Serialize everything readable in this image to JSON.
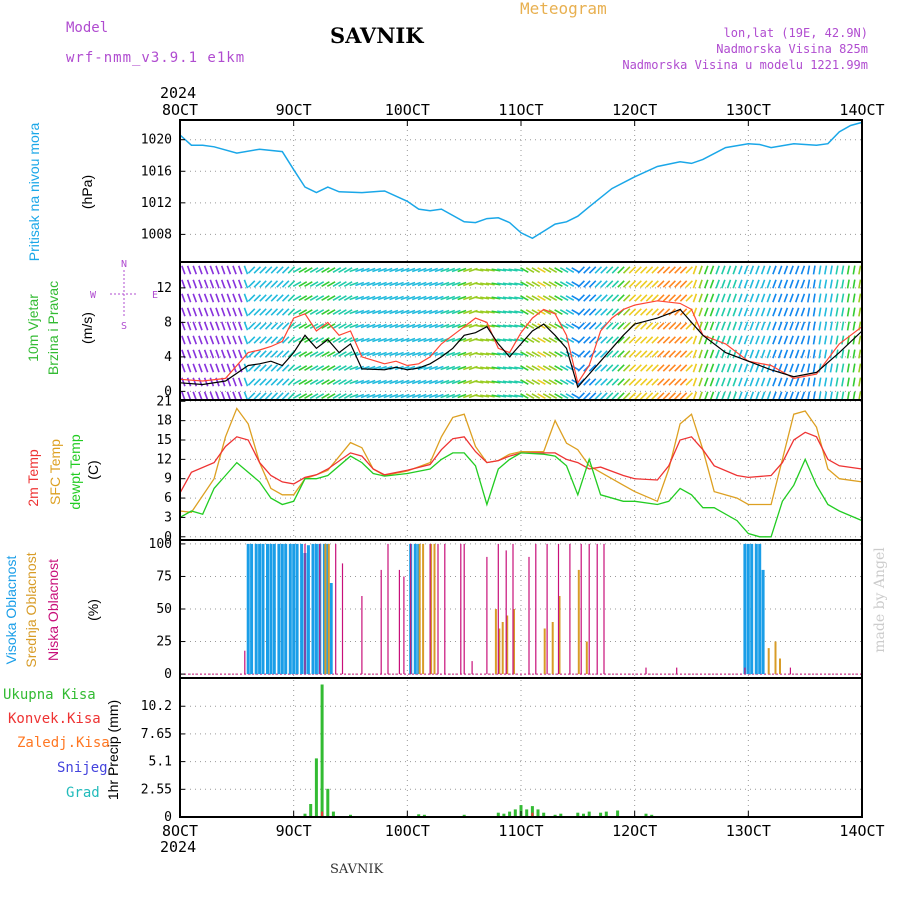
{
  "header": {
    "model_label": "Model",
    "model_name": "wrf-nmm_v3.9.1 e1km",
    "station_title": "SAVNIK",
    "product": "Meteogram",
    "lonlat": "lon,lat (19E, 42.9N)",
    "altitude": "Nadmorska Visina 825m",
    "model_altitude": "Nadmorska Visina u modelu 1221.99m",
    "year_top": "2024",
    "year_bottom": "2024",
    "footer_station": "SAVNIK",
    "credit": "made by Angel"
  },
  "colors": {
    "pressure": "#1aa7e8",
    "temp2m": "#ee3333",
    "sfc_temp": "#dda022",
    "dewpoint": "#22cc22",
    "wind_speed": "#000000",
    "gust": "#ff4433",
    "high_cloud": "#1a9ee8",
    "mid_cloud": "#d89c28",
    "low_cloud": "#c8107a",
    "total_precip": "#33bb33",
    "conv_precip": "#ee3333",
    "frz_precip": "#ff7722",
    "snow": "#4444dd",
    "graupel": "#22bbbb",
    "label_purple": "#b04cd0",
    "label_meteogram": "#e8b050"
  },
  "axis": {
    "x_ticks": [
      "8OCT",
      "9OCT",
      "10OCT",
      "11OCT",
      "12OCT",
      "13OCT",
      "14OCT"
    ],
    "x_range_days": [
      8,
      14
    ]
  },
  "panels": {
    "pressure": {
      "ylabel_left": "Pritisak na nivou mora",
      "unit": "(hPa)"
    },
    "wind": {
      "ylabel_1": "10m Vjetar",
      "ylabel_2": "Brzina i Pravac",
      "unit": "(m/s)",
      "compass_n": "N",
      "compass_w": "W",
      "compass_e": "E",
      "compass_s": "S"
    },
    "temperature": {
      "ylabel_1": "2m Temp",
      "ylabel_2": "SFC Temp",
      "ylabel_3": "dewpt Temp",
      "unit": "(C)"
    },
    "cloud": {
      "ylabel_1": "Visoka Oblacnost",
      "ylabel_2": "Srednja Oblacnost",
      "ylabel_3": "Niska Oblacnost",
      "unit": "(%)"
    },
    "precip": {
      "legend": [
        "Ukupna Kisa",
        "Konvek.Kisa",
        "Zaledj.Kisa",
        "Snijeg",
        "Grad"
      ],
      "ylabel": "1hr Precip (mm)"
    }
  },
  "chart_data": [
    {
      "type": "line",
      "title": "Pritisak na nivou mora",
      "ylabel": "(hPa)",
      "yticks": [
        "1008",
        "1012",
        "1016",
        "1020"
      ],
      "ylim": [
        1004.5,
        1022.5
      ],
      "x": [
        8.0,
        8.1,
        8.2,
        8.3,
        8.5,
        8.7,
        8.9,
        9.0,
        9.1,
        9.2,
        9.3,
        9.4,
        9.6,
        9.8,
        10.0,
        10.1,
        10.2,
        10.3,
        10.5,
        10.6,
        10.7,
        10.8,
        10.9,
        11.0,
        11.1,
        11.2,
        11.3,
        11.4,
        11.5,
        11.6,
        11.8,
        12.0,
        12.2,
        12.4,
        12.5,
        12.6,
        12.8,
        13.0,
        13.1,
        13.2,
        13.4,
        13.6,
        13.7,
        13.8,
        13.9,
        14.0
      ],
      "y": [
        1020.6,
        1019.3,
        1019.3,
        1019.1,
        1018.3,
        1018.8,
        1018.5,
        1016.2,
        1014.0,
        1013.3,
        1014.0,
        1013.4,
        1013.3,
        1013.5,
        1012.2,
        1011.2,
        1011.0,
        1011.2,
        1009.6,
        1009.5,
        1010.0,
        1010.1,
        1009.5,
        1008.2,
        1007.5,
        1008.4,
        1009.3,
        1009.6,
        1010.3,
        1011.5,
        1013.8,
        1015.3,
        1016.6,
        1017.2,
        1017.0,
        1017.5,
        1019.0,
        1019.5,
        1019.4,
        1019.0,
        1019.5,
        1019.3,
        1019.5,
        1021.0,
        1021.8,
        1022.2
      ]
    },
    {
      "type": "line",
      "title": "10m Vjetar Brzina i Pravac",
      "ylabel": "(m/s)",
      "yticks": [
        "0",
        "4",
        "8",
        "12"
      ],
      "ylim": [
        -1,
        15
      ],
      "series": [
        {
          "name": "wind_speed",
          "x": [
            8.0,
            8.2,
            8.4,
            8.6,
            8.7,
            8.8,
            8.9,
            9.0,
            9.1,
            9.2,
            9.3,
            9.4,
            9.5,
            9.6,
            9.8,
            9.9,
            10.0,
            10.1,
            10.2,
            10.3,
            10.4,
            10.5,
            10.6,
            10.7,
            10.8,
            10.9,
            11.0,
            11.1,
            11.2,
            11.3,
            11.4,
            11.5,
            11.6,
            11.7,
            11.8,
            11.9,
            12.0,
            12.2,
            12.4,
            12.5,
            12.6,
            12.8,
            13.0,
            13.2,
            13.4,
            13.6,
            13.8,
            14.0
          ],
          "y": [
            1.0,
            0.8,
            1.2,
            3.0,
            3.2,
            3.5,
            3.0,
            4.5,
            6.5,
            5.0,
            6.0,
            4.5,
            5.5,
            2.6,
            2.5,
            2.8,
            2.5,
            2.7,
            3.2,
            4.0,
            5.0,
            6.5,
            6.8,
            7.5,
            5.5,
            4.0,
            5.5,
            7.0,
            7.8,
            6.5,
            5.0,
            0.5,
            2.0,
            3.5,
            5.0,
            6.5,
            7.8,
            8.5,
            9.5,
            8.0,
            6.5,
            4.5,
            3.5,
            2.5,
            1.7,
            2.2,
            4.5,
            7.0
          ]
        },
        {
          "name": "gust",
          "x": [
            8.0,
            8.2,
            8.4,
            8.6,
            8.7,
            8.8,
            8.9,
            9.0,
            9.1,
            9.2,
            9.3,
            9.4,
            9.5,
            9.6,
            9.8,
            9.9,
            10.0,
            10.1,
            10.2,
            10.3,
            10.4,
            10.5,
            10.6,
            10.7,
            10.8,
            10.9,
            11.0,
            11.1,
            11.2,
            11.3,
            11.4,
            11.5,
            11.6,
            11.7,
            11.8,
            11.9,
            12.0,
            12.2,
            12.4,
            12.5,
            12.6,
            12.8,
            13.0,
            13.2,
            13.4,
            13.6,
            13.8,
            14.0
          ],
          "y": [
            1.4,
            1.2,
            1.5,
            4.5,
            4.8,
            5.2,
            5.8,
            8.5,
            9.0,
            7.0,
            8.0,
            6.5,
            7.0,
            4.0,
            3.2,
            3.5,
            3.0,
            3.2,
            4.0,
            5.5,
            6.5,
            7.5,
            8.5,
            8.0,
            5.0,
            4.5,
            6.8,
            8.5,
            9.5,
            9.0,
            6.5,
            1.0,
            3.0,
            7.0,
            8.5,
            9.5,
            10.0,
            10.5,
            10.2,
            9.5,
            6.5,
            5.5,
            3.5,
            3.0,
            1.5,
            2.0,
            5.5,
            7.5
          ]
        }
      ]
    },
    {
      "type": "line",
      "title": "2m Temp / SFC Temp / dewpt Temp",
      "ylabel": "(C)",
      "yticks": [
        "0",
        "3",
        "6",
        "9",
        "12",
        "15",
        "18",
        "21"
      ],
      "ylim": [
        -0.5,
        21.2
      ],
      "series": [
        {
          "name": "2m Temp",
          "x": [
            8.0,
            8.1,
            8.3,
            8.4,
            8.5,
            8.6,
            8.7,
            8.8,
            8.9,
            9.0,
            9.1,
            9.2,
            9.3,
            9.5,
            9.6,
            9.7,
            9.8,
            10.0,
            10.2,
            10.3,
            10.4,
            10.5,
            10.6,
            10.7,
            10.8,
            10.9,
            11.0,
            11.2,
            11.3,
            11.4,
            11.5,
            11.6,
            11.7,
            11.9,
            12.0,
            12.2,
            12.3,
            12.4,
            12.5,
            12.6,
            12.7,
            12.9,
            13.0,
            13.2,
            13.3,
            13.4,
            13.5,
            13.6,
            13.7,
            13.8,
            14.0
          ],
          "y": [
            6.8,
            10.0,
            11.5,
            14.0,
            15.5,
            15.0,
            11.5,
            9.5,
            8.5,
            8.2,
            9.2,
            9.6,
            10.5,
            13.0,
            12.5,
            10.5,
            9.6,
            10.3,
            11.2,
            13.5,
            15.2,
            15.5,
            13.2,
            11.5,
            11.8,
            12.5,
            13.0,
            13.0,
            13.0,
            12.0,
            11.5,
            10.5,
            10.8,
            9.5,
            9.0,
            8.8,
            11.0,
            15.0,
            15.5,
            13.5,
            11.0,
            9.5,
            9.2,
            9.5,
            11.5,
            15.0,
            16.2,
            15.5,
            12.0,
            11.0,
            10.5
          ]
        },
        {
          "name": "SFC Temp",
          "x": [
            8.0,
            8.1,
            8.3,
            8.4,
            8.5,
            8.6,
            8.7,
            8.8,
            8.9,
            9.0,
            9.1,
            9.2,
            9.3,
            9.5,
            9.6,
            9.7,
            9.8,
            10.0,
            10.2,
            10.3,
            10.4,
            10.5,
            10.6,
            10.7,
            10.8,
            10.9,
            11.0,
            11.2,
            11.3,
            11.4,
            11.5,
            11.6,
            11.7,
            11.9,
            12.0,
            12.2,
            12.3,
            12.4,
            12.5,
            12.6,
            12.7,
            12.9,
            13.0,
            13.2,
            13.3,
            13.4,
            13.5,
            13.6,
            13.7,
            13.8,
            14.0
          ],
          "y": [
            4.0,
            3.8,
            9.0,
            15.5,
            19.9,
            17.5,
            11.5,
            7.5,
            6.5,
            6.5,
            9.0,
            9.6,
            10.3,
            14.6,
            13.8,
            10.5,
            9.5,
            10.2,
            11.5,
            15.5,
            18.5,
            19.0,
            14.0,
            11.5,
            11.8,
            12.8,
            13.2,
            13.2,
            18.0,
            14.5,
            13.5,
            11.0,
            10.0,
            8.0,
            7.0,
            5.5,
            10.5,
            17.5,
            19.0,
            13.5,
            7.0,
            6.0,
            5.0,
            5.0,
            12.0,
            19.0,
            19.5,
            17.0,
            10.5,
            9.0,
            8.5
          ]
        },
        {
          "name": "dewpt Temp",
          "x": [
            8.0,
            8.1,
            8.2,
            8.3,
            8.4,
            8.5,
            8.6,
            8.7,
            8.8,
            8.9,
            9.0,
            9.1,
            9.2,
            9.3,
            9.5,
            9.6,
            9.7,
            9.8,
            10.0,
            10.2,
            10.3,
            10.4,
            10.5,
            10.6,
            10.7,
            10.8,
            10.9,
            11.0,
            11.2,
            11.3,
            11.4,
            11.5,
            11.6,
            11.7,
            11.9,
            12.0,
            12.2,
            12.3,
            12.4,
            12.5,
            12.6,
            12.7,
            12.9,
            13.0,
            13.1,
            13.2,
            13.3,
            13.4,
            13.5,
            13.6,
            13.7,
            13.8,
            14.0
          ],
          "y": [
            3.0,
            4.0,
            3.5,
            7.5,
            9.5,
            11.5,
            10.0,
            8.5,
            6.0,
            5.0,
            5.5,
            9.0,
            9.0,
            9.5,
            12.5,
            11.5,
            9.8,
            9.4,
            9.8,
            10.5,
            12.0,
            13.0,
            13.0,
            11.0,
            5.0,
            10.5,
            12.0,
            13.0,
            12.8,
            12.5,
            11.0,
            6.5,
            12.0,
            6.5,
            5.5,
            5.5,
            5.0,
            5.5,
            7.5,
            6.5,
            4.5,
            4.5,
            2.5,
            0.5,
            0.0,
            0.0,
            5.5,
            8.0,
            12.0,
            8.0,
            5.0,
            4.0,
            2.5
          ]
        }
      ]
    },
    {
      "type": "bar",
      "title": "Visoka / Srednja / Niska Oblacnost",
      "ylabel": "(%)",
      "yticks": [
        "0",
        "25",
        "50",
        "75",
        "100"
      ],
      "ylim": [
        -3,
        103
      ],
      "series": [
        {
          "name": "Visoka Oblacnost",
          "x": [
            8.6,
            8.63,
            8.67,
            8.7,
            8.73,
            8.77,
            8.8,
            8.83,
            8.87,
            8.9,
            8.93,
            8.97,
            9.0,
            9.03,
            9.07,
            9.1,
            9.13,
            9.17,
            9.2,
            9.23,
            9.27,
            9.3,
            9.33,
            10.03,
            10.07,
            10.1,
            12.97,
            13.0,
            13.03,
            13.07,
            13.1,
            13.13
          ],
          "y": [
            100,
            100,
            100,
            100,
            100,
            100,
            100,
            100,
            100,
            100,
            100,
            100,
            100,
            100,
            100,
            93,
            99,
            100,
            100,
            100,
            100,
            100,
            70,
            100,
            100,
            100,
            100,
            100,
            100,
            100,
            100,
            80
          ]
        },
        {
          "name": "Srednja Oblacnost",
          "x": [
            9.27,
            9.3,
            10.1,
            10.13,
            10.2,
            10.23,
            10.77,
            10.8,
            10.83,
            10.87,
            10.93,
            11.2,
            11.27,
            11.33,
            11.5,
            11.57,
            13.17,
            13.23,
            13.27
          ],
          "y": [
            100,
            100,
            100,
            100,
            100,
            100,
            50,
            35,
            40,
            45,
            50,
            35,
            40,
            60,
            80,
            25,
            20,
            25,
            12
          ]
        },
        {
          "name": "Niska Oblacnost",
          "x": [
            8.57,
            9.1,
            9.23,
            9.37,
            9.43,
            9.6,
            9.77,
            9.83,
            9.93,
            9.97,
            10.03,
            10.2,
            10.27,
            10.33,
            10.47,
            10.5,
            10.57,
            10.7,
            10.8,
            10.87,
            10.93,
            11.07,
            11.13,
            11.23,
            11.33,
            11.43,
            11.53,
            11.6,
            11.67,
            11.73,
            12.1,
            12.37,
            12.97,
            13.37
          ],
          "y": [
            18,
            100,
            100,
            100,
            85,
            60,
            80,
            100,
            80,
            75,
            100,
            100,
            100,
            100,
            100,
            100,
            10,
            90,
            100,
            95,
            100,
            90,
            100,
            100,
            100,
            100,
            100,
            100,
            100,
            100,
            5,
            5,
            5,
            5
          ]
        }
      ]
    },
    {
      "type": "bar",
      "title": "1hr Precip",
      "ylabel": "1hr Precip (mm)",
      "yticks": [
        "0",
        "2.55",
        "5.1",
        "7.65",
        "10.2"
      ],
      "ylim": [
        0,
        12.8
      ],
      "series": [
        {
          "name": "Ukupna Kisa",
          "x": [
            9.1,
            9.15,
            9.2,
            9.25,
            9.3,
            9.35,
            9.5,
            10.1,
            10.15,
            10.5,
            10.8,
            10.85,
            10.9,
            10.95,
            11.0,
            11.05,
            11.1,
            11.15,
            11.2,
            11.3,
            11.35,
            11.5,
            11.55,
            11.6,
            11.7,
            11.75,
            11.85,
            12.1,
            12.15
          ],
          "y": [
            0.3,
            1.2,
            5.4,
            12.2,
            2.6,
            0.5,
            0.2,
            0.25,
            0.2,
            0.2,
            0.4,
            0.3,
            0.5,
            0.7,
            1.1,
            0.7,
            1.0,
            0.7,
            0.4,
            0.2,
            0.3,
            0.4,
            0.3,
            0.5,
            0.4,
            0.5,
            0.6,
            0.3,
            0.2
          ]
        },
        {
          "name": "Konvek.Kisa",
          "x": [
            9.25,
            11.1
          ],
          "y": [
            0.5,
            0.4
          ]
        }
      ]
    }
  ]
}
